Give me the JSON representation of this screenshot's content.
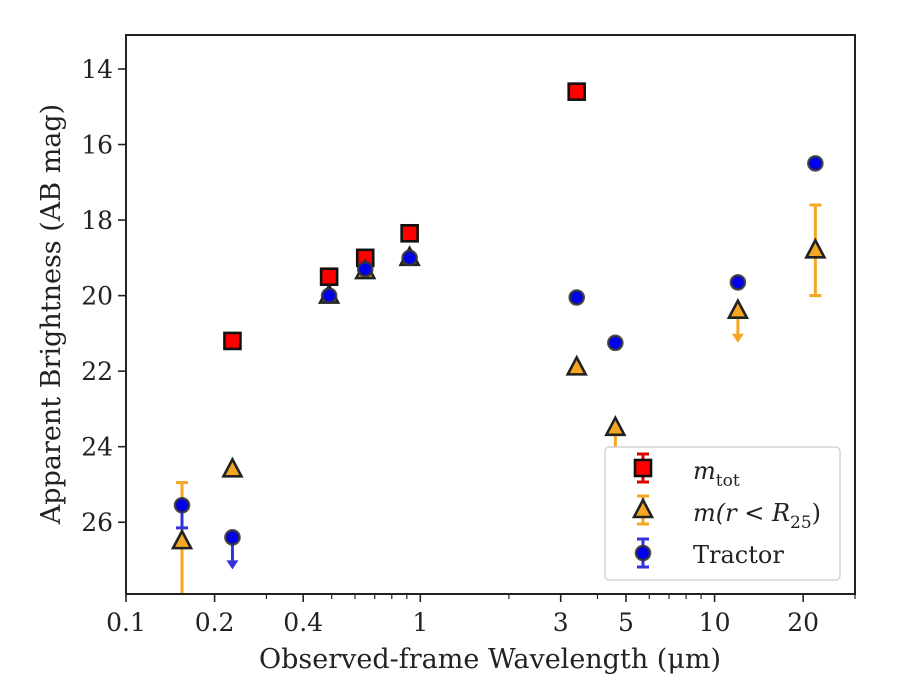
{
  "chart_data": {
    "type": "scatter",
    "xlabel": "Observed-frame Wavelength (μm)",
    "ylabel": "Apparent Brightness (AB mag)",
    "xscale": "log",
    "xlim": [
      0.1,
      30
    ],
    "ylim": [
      27.9,
      13.1
    ],
    "y_inverted": true,
    "x_ticks": [
      {
        "value": 0.1,
        "label": "0.1"
      },
      {
        "value": 0.2,
        "label": "0.2"
      },
      {
        "value": 0.4,
        "label": "0.4"
      },
      {
        "value": 1,
        "label": "1"
      },
      {
        "value": 3,
        "label": "3"
      },
      {
        "value": 5,
        "label": "5"
      },
      {
        "value": 10,
        "label": "10"
      },
      {
        "value": 20,
        "label": "20"
      }
    ],
    "x_minor_ticks": [
      0.3,
      0.5,
      0.6,
      0.7,
      0.8,
      0.9,
      2,
      4,
      6,
      7,
      8,
      9,
      30
    ],
    "y_ticks": [
      14,
      16,
      18,
      20,
      22,
      24,
      26
    ],
    "grid": false,
    "legend_position": "bottom-right",
    "legend": [
      {
        "label": "m",
        "subscript": "tot"
      },
      {
        "label": "m(r < R",
        "subscript": "25",
        "suffix": ")"
      },
      {
        "label": "Tractor"
      }
    ],
    "series": [
      {
        "marker": "square",
        "color": "#ff0000",
        "errcolor": "#dd0000",
        "points": [
          {
            "x": 0.23,
            "y": 21.2
          },
          {
            "x": 0.49,
            "y": 19.5
          },
          {
            "x": 0.65,
            "y": 19.0
          },
          {
            "x": 0.92,
            "y": 18.35
          },
          {
            "x": 3.4,
            "y": 14.6
          }
        ]
      },
      {
        "marker": "triangle",
        "color": "#f5a623",
        "errcolor": "#f5a623",
        "points": [
          {
            "x": 0.155,
            "y": 26.5,
            "yerr": [
              1.55,
              1.5
            ]
          },
          {
            "x": 0.23,
            "y": 24.6
          },
          {
            "x": 0.49,
            "y": 20.0
          },
          {
            "x": 0.65,
            "y": 19.35
          },
          {
            "x": 0.92,
            "y": 19.0
          },
          {
            "x": 3.4,
            "y": 21.9
          },
          {
            "x": 4.6,
            "y": 23.5,
            "upper_limit": true
          },
          {
            "x": 12.0,
            "y": 20.4,
            "upper_limit": true
          },
          {
            "x": 22.0,
            "y": 18.8,
            "yerr": [
              1.2,
              1.2
            ]
          }
        ]
      },
      {
        "marker": "circle",
        "color": "#0000ee",
        "errcolor": "#3333dd",
        "points": [
          {
            "x": 0.155,
            "y": 25.55,
            "yerr": [
              0.05,
              0.6
            ]
          },
          {
            "x": 0.23,
            "y": 26.4,
            "upper_limit": true
          },
          {
            "x": 0.49,
            "y": 20.0
          },
          {
            "x": 0.65,
            "y": 19.3
          },
          {
            "x": 0.92,
            "y": 19.0
          },
          {
            "x": 3.4,
            "y": 20.05
          },
          {
            "x": 4.6,
            "y": 21.25
          },
          {
            "x": 12.0,
            "y": 19.65
          },
          {
            "x": 22.0,
            "y": 16.5
          }
        ]
      }
    ]
  }
}
